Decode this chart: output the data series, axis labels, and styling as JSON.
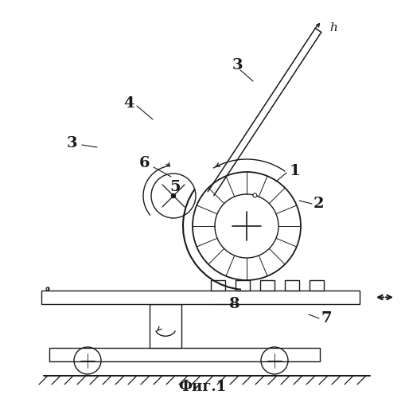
{
  "bg_color": "#ffffff",
  "line_color": "#1a1a1a",
  "fig_label": "Фиг.1",
  "label_fontsize": 13
}
